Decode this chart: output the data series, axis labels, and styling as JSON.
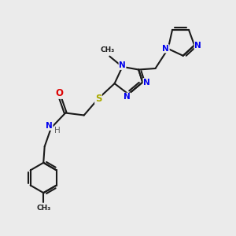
{
  "bg_color": "#ebebeb",
  "bond_color": "#1a1a1a",
  "bond_width": 1.5,
  "atom_colors": {
    "N": "#0000ee",
    "O": "#dd0000",
    "S": "#aaaa00",
    "H": "#606060",
    "C": "#1a1a1a"
  },
  "font_size_atom": 7.5,
  "font_size_small": 6.5,
  "figsize": [
    3.0,
    3.0
  ],
  "dpi": 100
}
